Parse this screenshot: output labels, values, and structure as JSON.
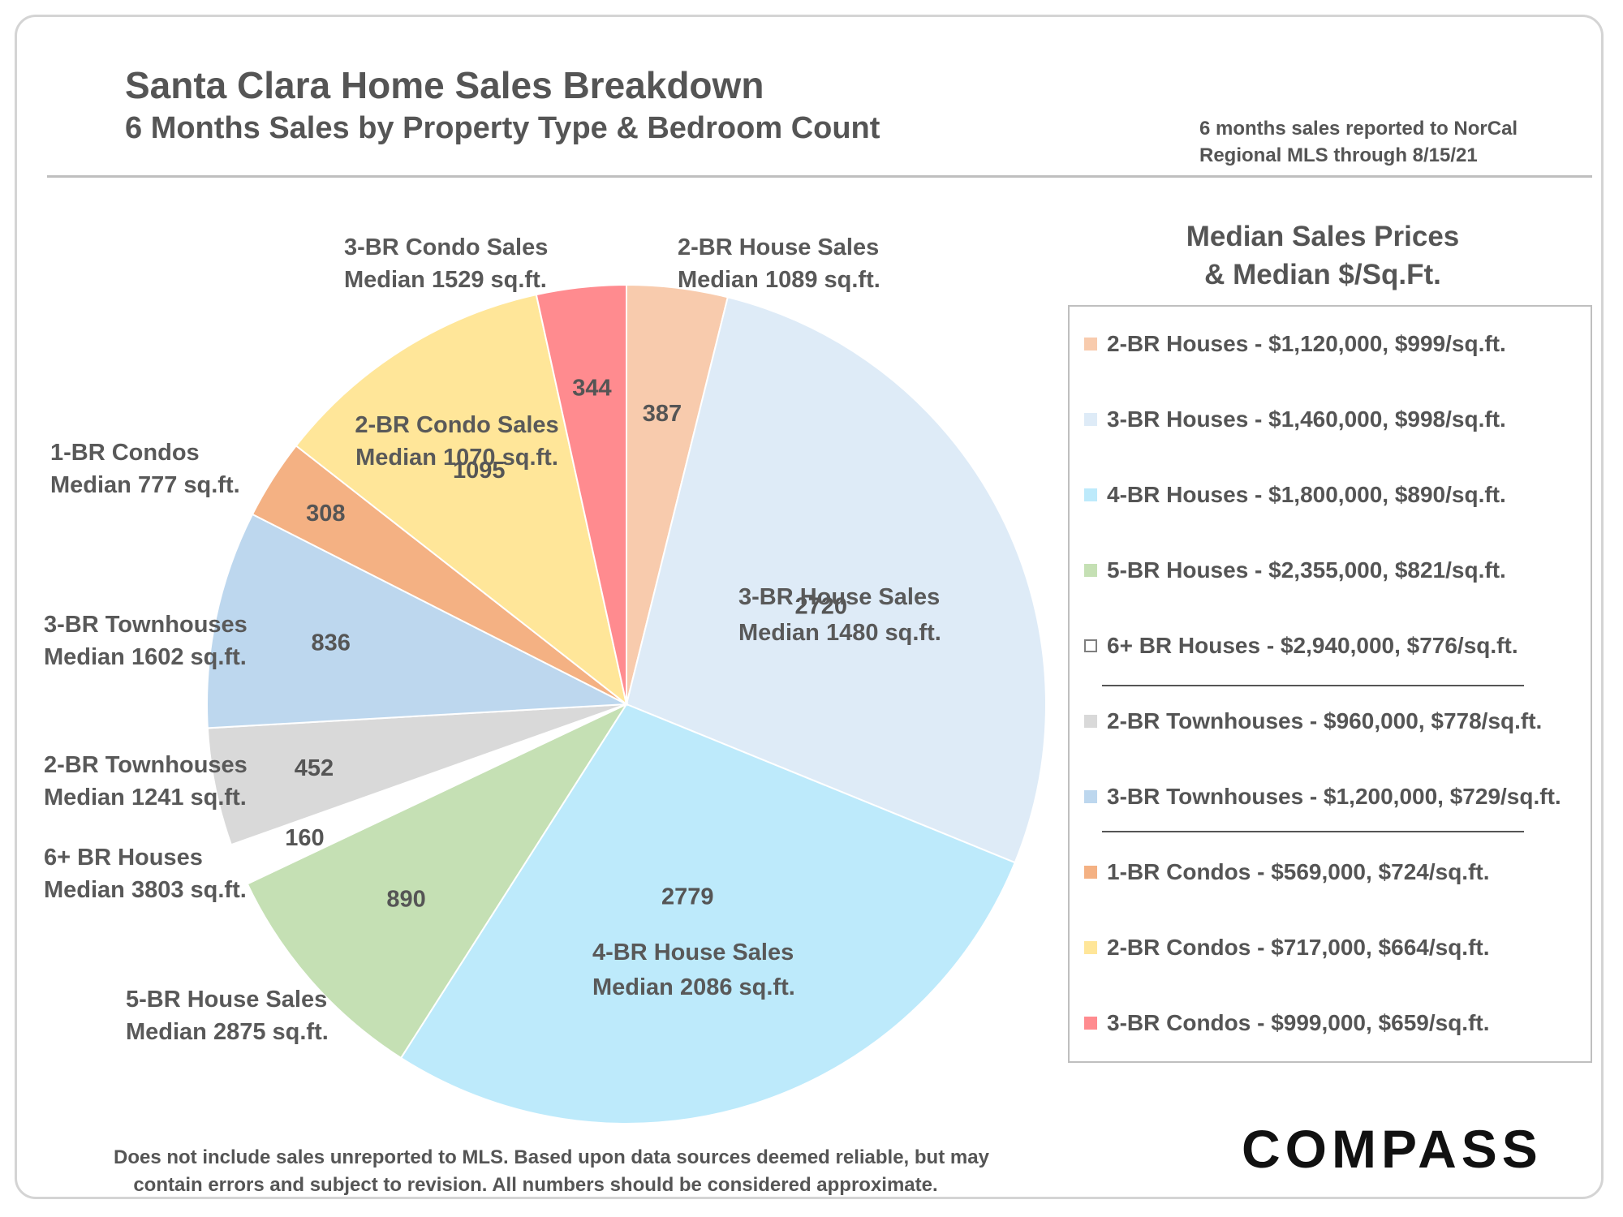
{
  "title": "Santa Clara Home Sales Breakdown",
  "subtitle": "6 Months Sales by Property Type & Bedroom Count",
  "source_note": [
    "6 months sales reported to NorCal",
    "Regional MLS through 8/15/21"
  ],
  "legend": {
    "heading": [
      "Median Sales Prices",
      "& Median $/Sq.Ft."
    ],
    "items": [
      {
        "label": "2-BR Houses - $1,120,000, $999/sq.ft.",
        "color": "#f8cbad"
      },
      {
        "label": "3-BR Houses - $1,460,000, $998/sq.ft.",
        "color": "#deebf7"
      },
      {
        "label": "4-BR Houses - $1,800,000, $890/sq.ft.",
        "color": "#bdeafb"
      },
      {
        "label": "5-BR Houses - $2,355,000, $821/sq.ft.",
        "color": "#c5e0b4"
      },
      {
        "label": "6+ BR Houses - $2,940,000, $776/sq.ft.",
        "color": "#ffffff"
      },
      {
        "label": "2-BR Townhouses - $960,000, $778/sq.ft.",
        "color": "#d9d9d9"
      },
      {
        "label": "3-BR Townhouses - $1,200,000, $729/sq.ft.",
        "color": "#bdd7ee"
      },
      {
        "label": "1-BR Condos - $569,000, $724/sq.ft.",
        "color": "#f4b183"
      },
      {
        "label": "2-BR Condos - $717,000, $664/sq.ft.",
        "color": "#ffe699"
      },
      {
        "label": "3-BR Condos - $999,000, $659/sq.ft.",
        "color": "#ff8b8f"
      }
    ]
  },
  "disclaimer": [
    "Does not include sales unreported to MLS.  Based upon data sources deemed reliable, but may",
    "contain errors and subject to revision. All numbers should be considered approximate."
  ],
  "logo": "COMPASS",
  "chart_data": {
    "type": "pie",
    "start_angle_deg": 0,
    "direction": "clockwise",
    "slices": [
      {
        "key": "2br-house",
        "value": 387,
        "color": "#f8cbad",
        "label": [
          "2-BR House Sales",
          "Median 1089 sq.ft."
        ]
      },
      {
        "key": "3br-house",
        "value": 2720,
        "color": "#deebf7",
        "label": [
          "3-BR House Sales",
          "Median 1480 sq.ft."
        ]
      },
      {
        "key": "4br-house",
        "value": 2779,
        "color": "#bdeafb",
        "label": [
          "4-BR House Sales",
          "Median 2086 sq.ft."
        ]
      },
      {
        "key": "5br-house",
        "value": 890,
        "color": "#c5e0b4",
        "label": [
          "5-BR House Sales",
          "Median 2875 sq.ft."
        ]
      },
      {
        "key": "6br-house",
        "value": 160,
        "color": "#ffffff",
        "label": [
          "6+ BR Houses",
          "Median 3803 sq.ft."
        ]
      },
      {
        "key": "2br-townhouse",
        "value": 452,
        "color": "#d9d9d9",
        "label": [
          "2-BR Townhouses",
          "Median 1241 sq.ft."
        ]
      },
      {
        "key": "3br-townhouse",
        "value": 836,
        "color": "#bdd7ee",
        "label": [
          "3-BR Townhouses",
          "Median 1602 sq.ft."
        ]
      },
      {
        "key": "1br-condo",
        "value": 308,
        "color": "#f4b183",
        "label": [
          "1-BR Condos",
          "Median 777 sq.ft."
        ]
      },
      {
        "key": "2br-condo",
        "value": 1095,
        "color": "#ffe699",
        "label": [
          "2-BR Condo Sales",
          "Median 1070 sq.ft."
        ]
      },
      {
        "key": "3br-condo",
        "value": 344,
        "color": "#ff8b8f",
        "label": [
          "3-BR Condo Sales",
          "Median 1529 sq.ft."
        ]
      }
    ]
  }
}
